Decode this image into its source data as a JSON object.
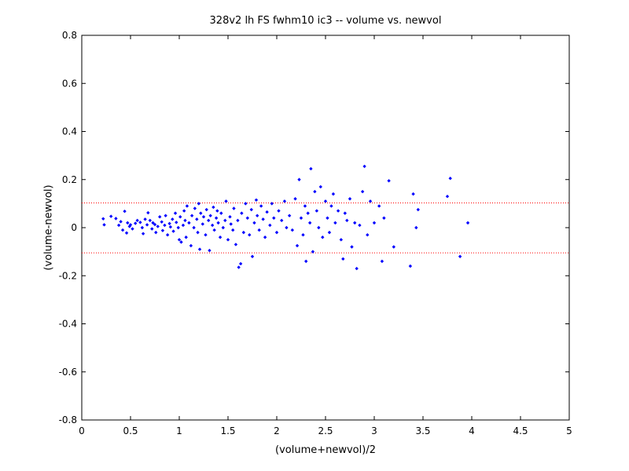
{
  "chart_data": {
    "type": "scatter",
    "title": "328v2 lh FS fwhm10 ic3 -- volume vs. newvol",
    "xlabel": "(volume+newvol)/2",
    "ylabel": "(volume-newvol)",
    "xlim": [
      0,
      5
    ],
    "ylim": [
      -0.8,
      0.8
    ],
    "xticks": [
      "0",
      "0.5",
      "1",
      "1.5",
      "2",
      "2.5",
      "3",
      "3.5",
      "4",
      "4.5",
      "5"
    ],
    "yticks": [
      "0.8",
      "0.6",
      "0.4",
      "0.2",
      "0",
      "-0.2",
      "-0.4",
      "-0.6",
      "-0.8"
    ],
    "grid": false,
    "marker_color": "#0000ff",
    "reference_lines": [
      {
        "y": 0.103,
        "style": "dotted",
        "color": "#ff0000"
      },
      {
        "y": -0.105,
        "style": "dotted",
        "color": "#ff0000"
      }
    ],
    "series": [
      {
        "points": [
          [
            0.22,
            0.037
          ],
          [
            0.23,
            0.012
          ],
          [
            0.3,
            0.047
          ],
          [
            0.35,
            0.038
          ],
          [
            0.38,
            0.01
          ],
          [
            0.4,
            0.025
          ],
          [
            0.42,
            -0.01
          ],
          [
            0.44,
            0.068
          ],
          [
            0.46,
            -0.022
          ],
          [
            0.47,
            0.02
          ],
          [
            0.49,
            0.005
          ],
          [
            0.5,
            0.012
          ],
          [
            0.52,
            -0.005
          ],
          [
            0.55,
            0.018
          ],
          [
            0.57,
            0.03
          ],
          [
            0.6,
            0.022
          ],
          [
            0.62,
            0.0
          ],
          [
            0.63,
            -0.025
          ],
          [
            0.65,
            0.035
          ],
          [
            0.67,
            0.012
          ],
          [
            0.68,
            0.062
          ],
          [
            0.7,
            0.03
          ],
          [
            0.72,
            -0.005
          ],
          [
            0.73,
            0.02
          ],
          [
            0.75,
            0.013
          ],
          [
            0.76,
            -0.02
          ],
          [
            0.78,
            0.005
          ],
          [
            0.8,
            0.045
          ],
          [
            0.82,
            0.024
          ],
          [
            0.83,
            -0.012
          ],
          [
            0.85,
            0.01
          ],
          [
            0.86,
            0.05
          ],
          [
            0.88,
            -0.03
          ],
          [
            0.9,
            0.017
          ],
          [
            0.91,
            0.003
          ],
          [
            0.93,
            0.035
          ],
          [
            0.94,
            -0.015
          ],
          [
            0.96,
            0.06
          ],
          [
            0.97,
            0.022
          ],
          [
            0.99,
            0.0
          ],
          [
            1.0,
            -0.05
          ],
          [
            1.01,
            0.045
          ],
          [
            1.02,
            -0.06
          ],
          [
            1.04,
            0.01
          ],
          [
            1.05,
            0.07
          ],
          [
            1.06,
            0.03
          ],
          [
            1.07,
            -0.04
          ],
          [
            1.08,
            0.09
          ],
          [
            1.1,
            0.02
          ],
          [
            1.12,
            -0.075
          ],
          [
            1.13,
            0.05
          ],
          [
            1.15,
            0.0
          ],
          [
            1.16,
            0.08
          ],
          [
            1.18,
            0.035
          ],
          [
            1.19,
            -0.02
          ],
          [
            1.2,
            0.1
          ],
          [
            1.21,
            -0.09
          ],
          [
            1.22,
            0.06
          ],
          [
            1.24,
            0.015
          ],
          [
            1.25,
            0.045
          ],
          [
            1.27,
            -0.03
          ],
          [
            1.28,
            0.075
          ],
          [
            1.3,
            0.03
          ],
          [
            1.31,
            -0.095
          ],
          [
            1.32,
            0.05
          ],
          [
            1.34,
            0.01
          ],
          [
            1.35,
            0.085
          ],
          [
            1.36,
            -0.01
          ],
          [
            1.38,
            0.04
          ],
          [
            1.39,
            0.07
          ],
          [
            1.4,
            0.02
          ],
          [
            1.42,
            -0.04
          ],
          [
            1.43,
            0.06
          ],
          [
            1.45,
            0.0
          ],
          [
            1.47,
            0.03
          ],
          [
            1.48,
            0.11
          ],
          [
            1.5,
            -0.05
          ],
          [
            1.52,
            0.045
          ],
          [
            1.53,
            0.015
          ],
          [
            1.55,
            -0.01
          ],
          [
            1.56,
            0.08
          ],
          [
            1.58,
            -0.07
          ],
          [
            1.6,
            0.03
          ],
          [
            1.61,
            -0.165
          ],
          [
            1.63,
            -0.15
          ],
          [
            1.64,
            0.06
          ],
          [
            1.66,
            -0.02
          ],
          [
            1.68,
            0.1
          ],
          [
            1.7,
            0.04
          ],
          [
            1.72,
            -0.03
          ],
          [
            1.74,
            0.075
          ],
          [
            1.75,
            -0.12
          ],
          [
            1.77,
            0.02
          ],
          [
            1.79,
            0.115
          ],
          [
            1.8,
            0.05
          ],
          [
            1.82,
            -0.01
          ],
          [
            1.84,
            0.09
          ],
          [
            1.86,
            0.035
          ],
          [
            1.88,
            -0.04
          ],
          [
            1.9,
            0.065
          ],
          [
            1.93,
            0.01
          ],
          [
            1.95,
            0.1
          ],
          [
            1.97,
            0.04
          ],
          [
            2.0,
            -0.02
          ],
          [
            2.02,
            0.07
          ],
          [
            2.05,
            0.03
          ],
          [
            2.08,
            0.11
          ],
          [
            2.1,
            0.0
          ],
          [
            2.13,
            0.05
          ],
          [
            2.16,
            -0.01
          ],
          [
            2.19,
            0.12
          ],
          [
            2.21,
            -0.075
          ],
          [
            2.23,
            0.2
          ],
          [
            2.25,
            0.04
          ],
          [
            2.27,
            -0.03
          ],
          [
            2.29,
            0.09
          ],
          [
            2.3,
            -0.14
          ],
          [
            2.32,
            0.06
          ],
          [
            2.34,
            0.02
          ],
          [
            2.35,
            0.245
          ],
          [
            2.37,
            -0.1
          ],
          [
            2.39,
            0.15
          ],
          [
            2.41,
            0.07
          ],
          [
            2.43,
            0.0
          ],
          [
            2.45,
            0.17
          ],
          [
            2.47,
            -0.04
          ],
          [
            2.5,
            0.11
          ],
          [
            2.52,
            0.04
          ],
          [
            2.54,
            -0.02
          ],
          [
            2.56,
            0.09
          ],
          [
            2.58,
            0.14
          ],
          [
            2.6,
            0.02
          ],
          [
            2.63,
            0.07
          ],
          [
            2.66,
            -0.05
          ],
          [
            2.68,
            -0.13
          ],
          [
            2.7,
            0.06
          ],
          [
            2.72,
            0.03
          ],
          [
            2.75,
            0.12
          ],
          [
            2.77,
            -0.08
          ],
          [
            2.8,
            0.02
          ],
          [
            2.82,
            -0.17
          ],
          [
            2.85,
            0.01
          ],
          [
            2.88,
            0.15
          ],
          [
            2.9,
            0.255
          ],
          [
            2.93,
            -0.03
          ],
          [
            2.96,
            0.11
          ],
          [
            3.0,
            0.02
          ],
          [
            3.05,
            0.09
          ],
          [
            3.08,
            -0.14
          ],
          [
            3.1,
            0.04
          ],
          [
            3.15,
            0.195
          ],
          [
            3.2,
            -0.08
          ],
          [
            3.37,
            -0.16
          ],
          [
            3.4,
            0.14
          ],
          [
            3.43,
            0.0
          ],
          [
            3.45,
            0.075
          ],
          [
            3.75,
            0.13
          ],
          [
            3.78,
            0.205
          ],
          [
            3.88,
            -0.12
          ],
          [
            3.96,
            0.02
          ]
        ]
      }
    ]
  }
}
